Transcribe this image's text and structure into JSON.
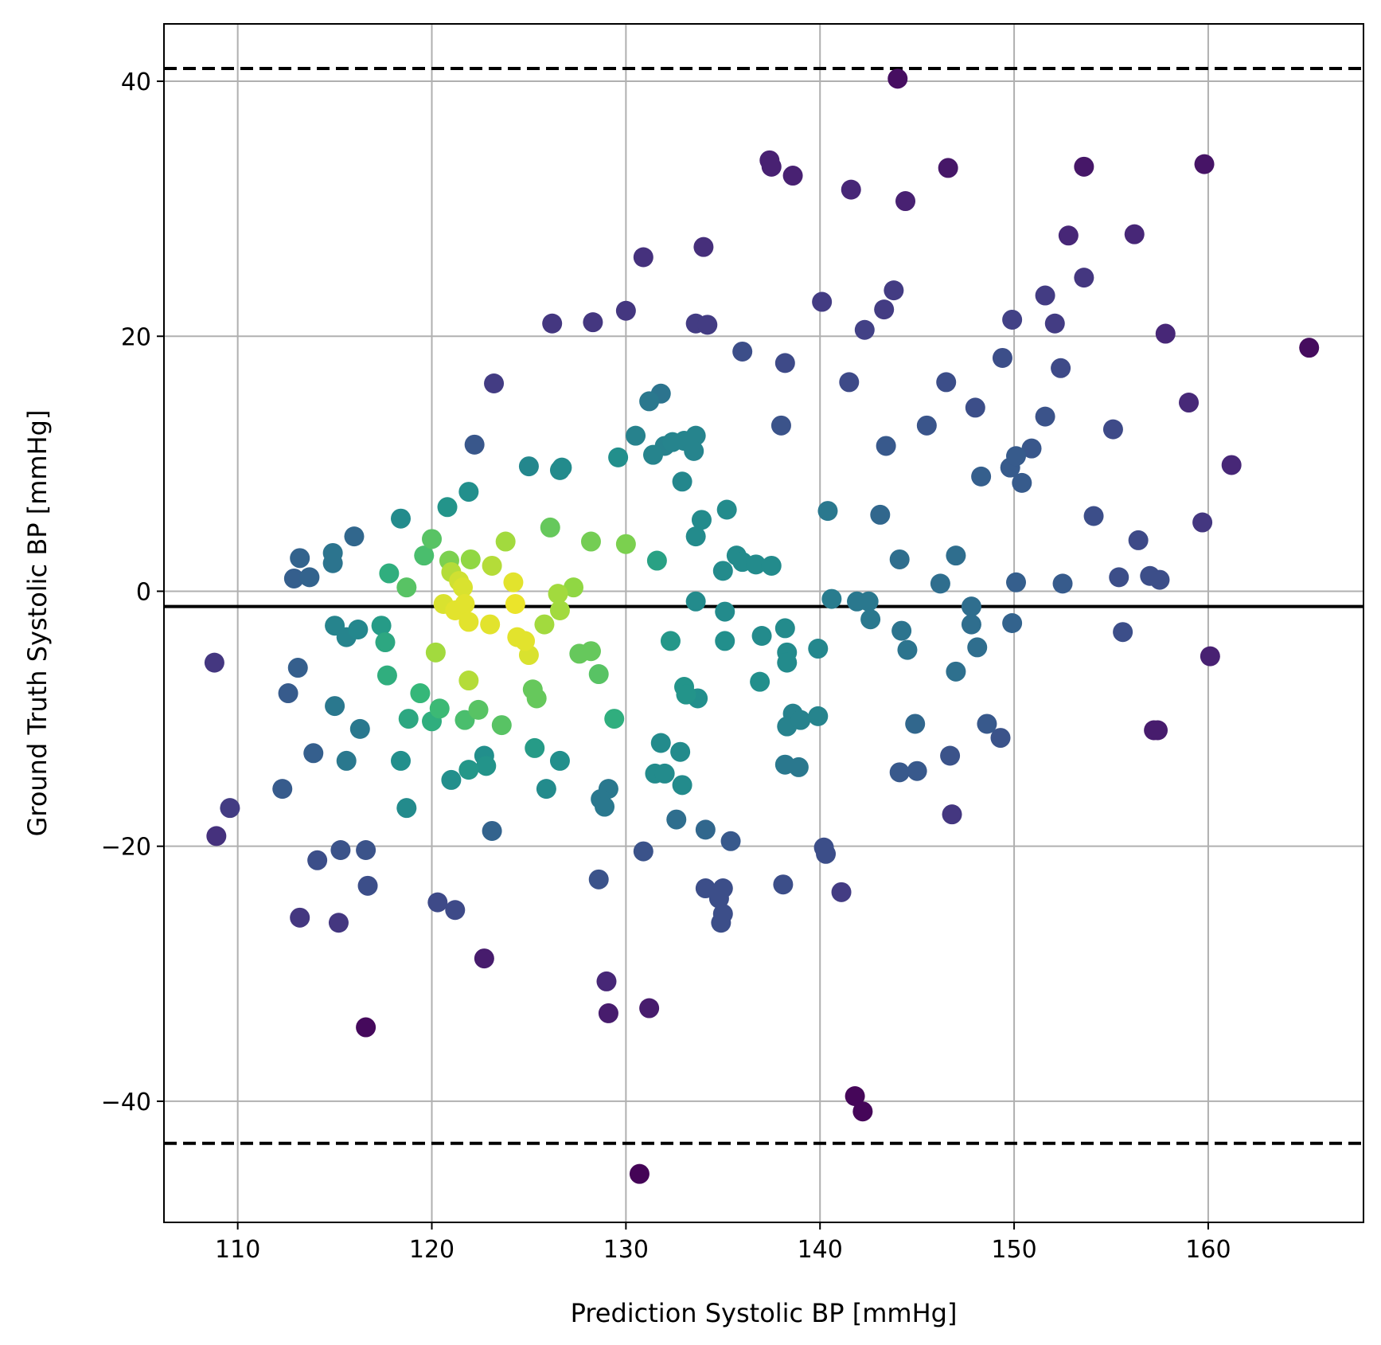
{
  "chart_data": {
    "type": "scatter",
    "title": "",
    "xlabel": "Prediction Systolic BP [mmHg]",
    "ylabel": "Ground Truth Systolic BP [mmHg]",
    "xlim": [
      106.2,
      168.0
    ],
    "ylim": [
      -49.5,
      44.5
    ],
    "xticks": [
      110,
      120,
      130,
      140,
      150,
      160
    ],
    "yticks": [
      -40,
      -20,
      0,
      20,
      40
    ],
    "ytick_labels": [
      "−40",
      "−20",
      "0",
      "20",
      "40"
    ],
    "grid": true,
    "colormap": "viridis",
    "color_note": "point color encodes local point density (yellow = densest, dark purple = sparsest)",
    "reference_lines": [
      {
        "kind": "mean",
        "y": -1.2,
        "style": "solid",
        "color": "#000000"
      },
      {
        "kind": "upper_limit",
        "y": 41.0,
        "style": "dashed",
        "color": "#000000"
      },
      {
        "kind": "lower_limit",
        "y": -43.3,
        "style": "dashed",
        "color": "#000000"
      }
    ],
    "points": [
      [
        144.0,
        40.2,
        0.05
      ],
      [
        137.4,
        33.8,
        0.12
      ],
      [
        137.5,
        33.3,
        0.12
      ],
      [
        138.6,
        32.6,
        0.12
      ],
      [
        146.6,
        33.2,
        0.08
      ],
      [
        141.6,
        31.5,
        0.14
      ],
      [
        144.4,
        30.6,
        0.12
      ],
      [
        153.6,
        33.3,
        0.08
      ],
      [
        159.8,
        33.5,
        0.07
      ],
      [
        130.9,
        26.2,
        0.18
      ],
      [
        134.0,
        27.0,
        0.17
      ],
      [
        152.8,
        27.9,
        0.14
      ],
      [
        156.2,
        28.0,
        0.14
      ],
      [
        126.2,
        21.0,
        0.2
      ],
      [
        128.3,
        21.1,
        0.2
      ],
      [
        130.0,
        22.0,
        0.2
      ],
      [
        133.6,
        21.0,
        0.22
      ],
      [
        134.2,
        20.9,
        0.22
      ],
      [
        140.1,
        22.7,
        0.22
      ],
      [
        142.3,
        20.5,
        0.24
      ],
      [
        143.3,
        22.1,
        0.22
      ],
      [
        143.8,
        23.6,
        0.22
      ],
      [
        149.9,
        21.3,
        0.24
      ],
      [
        151.6,
        23.2,
        0.22
      ],
      [
        152.1,
        21.0,
        0.22
      ],
      [
        153.6,
        24.6,
        0.2
      ],
      [
        157.8,
        20.2,
        0.14
      ],
      [
        165.2,
        19.1,
        0.04
      ],
      [
        136.0,
        18.8,
        0.3
      ],
      [
        138.2,
        17.9,
        0.28
      ],
      [
        141.5,
        16.4,
        0.28
      ],
      [
        146.5,
        16.4,
        0.3
      ],
      [
        148.0,
        14.4,
        0.3
      ],
      [
        152.4,
        17.5,
        0.28
      ],
      [
        159.0,
        14.8,
        0.15
      ],
      [
        123.2,
        16.3,
        0.22
      ],
      [
        131.2,
        14.9,
        0.5
      ],
      [
        131.8,
        15.5,
        0.48
      ],
      [
        138.0,
        13.0,
        0.32
      ],
      [
        145.5,
        13.0,
        0.33
      ],
      [
        151.6,
        13.7,
        0.32
      ],
      [
        155.1,
        12.7,
        0.28
      ],
      [
        122.2,
        11.5,
        0.34
      ],
      [
        130.5,
        12.2,
        0.55
      ],
      [
        132.0,
        11.4,
        0.55
      ],
      [
        132.4,
        11.7,
        0.56
      ],
      [
        133.0,
        11.8,
        0.56
      ],
      [
        133.6,
        12.2,
        0.56
      ],
      [
        133.5,
        11.0,
        0.56
      ],
      [
        131.4,
        10.7,
        0.56
      ],
      [
        143.4,
        11.4,
        0.35
      ],
      [
        149.4,
        18.3,
        0.3
      ],
      [
        149.8,
        9.7,
        0.36
      ],
      [
        150.1,
        10.6,
        0.36
      ],
      [
        150.9,
        11.2,
        0.34
      ],
      [
        150.4,
        8.5,
        0.36
      ],
      [
        148.3,
        9.0,
        0.38
      ],
      [
        161.2,
        9.9,
        0.14
      ],
      [
        125.0,
        9.8,
        0.58
      ],
      [
        126.7,
        9.7,
        0.6
      ],
      [
        126.6,
        9.5,
        0.6
      ],
      [
        129.6,
        10.5,
        0.62
      ],
      [
        132.9,
        8.6,
        0.58
      ],
      [
        121.9,
        7.8,
        0.62
      ],
      [
        120.8,
        6.6,
        0.64
      ],
      [
        118.4,
        5.7,
        0.6
      ],
      [
        116.0,
        4.3,
        0.42
      ],
      [
        133.9,
        5.6,
        0.6
      ],
      [
        135.2,
        6.4,
        0.6
      ],
      [
        140.4,
        6.3,
        0.5
      ],
      [
        143.1,
        6.0,
        0.42
      ],
      [
        154.1,
        5.9,
        0.3
      ],
      [
        159.7,
        5.4,
        0.2
      ],
      [
        126.1,
        5.0,
        0.82
      ],
      [
        128.2,
        3.9,
        0.84
      ],
      [
        130.0,
        3.7,
        0.85
      ],
      [
        123.8,
        3.9,
        0.9
      ],
      [
        120.0,
        4.1,
        0.8
      ],
      [
        133.6,
        4.3,
        0.6
      ],
      [
        156.4,
        4.0,
        0.28
      ],
      [
        113.2,
        2.6,
        0.4
      ],
      [
        114.9,
        3.0,
        0.48
      ],
      [
        114.9,
        2.2,
        0.48
      ],
      [
        112.9,
        1.0,
        0.38
      ],
      [
        113.7,
        1.1,
        0.4
      ],
      [
        117.8,
        1.4,
        0.72
      ],
      [
        119.6,
        2.8,
        0.78
      ],
      [
        120.9,
        2.4,
        0.85
      ],
      [
        122.0,
        2.5,
        0.88
      ],
      [
        123.1,
        2.0,
        0.92
      ],
      [
        124.2,
        0.7,
        0.97
      ],
      [
        121.0,
        1.5,
        0.92
      ],
      [
        121.4,
        0.8,
        0.95
      ],
      [
        118.7,
        0.3,
        0.8
      ],
      [
        131.6,
        2.4,
        0.68
      ],
      [
        135.0,
        1.6,
        0.6
      ],
      [
        135.7,
        2.8,
        0.6
      ],
      [
        136.0,
        2.3,
        0.6
      ],
      [
        136.7,
        2.1,
        0.6
      ],
      [
        137.5,
        2.0,
        0.6
      ],
      [
        144.1,
        2.5,
        0.45
      ],
      [
        147.0,
        2.8,
        0.45
      ],
      [
        146.2,
        0.6,
        0.45
      ],
      [
        150.1,
        0.7,
        0.38
      ],
      [
        152.5,
        0.6,
        0.36
      ],
      [
        155.4,
        1.1,
        0.3
      ],
      [
        157.0,
        1.2,
        0.3
      ],
      [
        157.5,
        0.9,
        0.3
      ],
      [
        126.5,
        -0.2,
        0.9
      ],
      [
        127.3,
        0.3,
        0.88
      ],
      [
        121.6,
        0.3,
        0.96
      ],
      [
        120.6,
        -1.0,
        0.96
      ],
      [
        121.2,
        -1.5,
        0.97
      ],
      [
        121.7,
        -1.0,
        0.97
      ],
      [
        121.9,
        -2.4,
        0.97
      ],
      [
        124.3,
        -1.0,
        0.98
      ],
      [
        123.0,
        -2.6,
        0.97
      ],
      [
        125.8,
        -2.6,
        0.9
      ],
      [
        126.6,
        -1.5,
        0.9
      ],
      [
        124.4,
        -3.6,
        0.97
      ],
      [
        124.8,
        -3.9,
        0.97
      ],
      [
        125.0,
        -5.0,
        0.96
      ],
      [
        120.2,
        -4.8,
        0.9
      ],
      [
        128.2,
        -4.7,
        0.82
      ],
      [
        127.6,
        -4.9,
        0.82
      ],
      [
        128.6,
        -6.5,
        0.8
      ],
      [
        117.4,
        -2.7,
        0.66
      ],
      [
        117.6,
        -4.0,
        0.7
      ],
      [
        116.2,
        -3.0,
        0.58
      ],
      [
        115.0,
        -2.7,
        0.56
      ],
      [
        115.6,
        -3.6,
        0.56
      ],
      [
        133.6,
        -0.8,
        0.6
      ],
      [
        135.1,
        -1.6,
        0.6
      ],
      [
        135.1,
        -3.9,
        0.62
      ],
      [
        137.0,
        -3.5,
        0.6
      ],
      [
        138.2,
        -2.9,
        0.6
      ],
      [
        138.3,
        -4.8,
        0.6
      ],
      [
        138.3,
        -5.6,
        0.6
      ],
      [
        132.3,
        -3.9,
        0.65
      ],
      [
        139.9,
        -4.5,
        0.58
      ],
      [
        140.6,
        -0.6,
        0.52
      ],
      [
        141.9,
        -0.8,
        0.5
      ],
      [
        142.5,
        -0.8,
        0.5
      ],
      [
        142.6,
        -2.2,
        0.5
      ],
      [
        144.2,
        -3.1,
        0.48
      ],
      [
        144.5,
        -4.6,
        0.48
      ],
      [
        147.8,
        -1.2,
        0.45
      ],
      [
        147.8,
        -2.6,
        0.45
      ],
      [
        148.1,
        -4.4,
        0.45
      ],
      [
        149.9,
        -2.5,
        0.4
      ],
      [
        155.6,
        -3.2,
        0.3
      ],
      [
        160.1,
        -5.1,
        0.12
      ],
      [
        108.8,
        -5.6,
        0.2
      ],
      [
        113.1,
        -6.0,
        0.38
      ],
      [
        112.6,
        -8.0,
        0.36
      ],
      [
        117.7,
        -6.6,
        0.72
      ],
      [
        119.4,
        -8.0,
        0.75
      ],
      [
        121.9,
        -7.0,
        0.92
      ],
      [
        125.2,
        -7.7,
        0.82
      ],
      [
        125.4,
        -8.4,
        0.82
      ],
      [
        136.9,
        -7.1,
        0.62
      ],
      [
        133.0,
        -7.5,
        0.64
      ],
      [
        133.1,
        -8.1,
        0.64
      ],
      [
        133.7,
        -8.4,
        0.62
      ],
      [
        147.0,
        -6.3,
        0.46
      ],
      [
        115.0,
        -9.0,
        0.5
      ],
      [
        118.8,
        -10.0,
        0.7
      ],
      [
        120.0,
        -10.2,
        0.72
      ],
      [
        120.4,
        -9.2,
        0.76
      ],
      [
        121.7,
        -10.1,
        0.78
      ],
      [
        122.4,
        -9.3,
        0.8
      ],
      [
        123.6,
        -10.5,
        0.8
      ],
      [
        129.4,
        -10.0,
        0.72
      ],
      [
        138.6,
        -9.6,
        0.55
      ],
      [
        138.3,
        -10.6,
        0.55
      ],
      [
        139.0,
        -10.1,
        0.55
      ],
      [
        139.9,
        -9.8,
        0.56
      ],
      [
        144.9,
        -10.4,
        0.42
      ],
      [
        148.6,
        -10.4,
        0.35
      ],
      [
        149.3,
        -11.5,
        0.32
      ],
      [
        157.2,
        -10.9,
        0.1
      ],
      [
        157.4,
        -10.9,
        0.1
      ],
      [
        116.3,
        -10.8,
        0.5
      ],
      [
        113.9,
        -12.7,
        0.38
      ],
      [
        115.6,
        -13.3,
        0.5
      ],
      [
        118.4,
        -13.3,
        0.62
      ],
      [
        125.3,
        -12.3,
        0.66
      ],
      [
        126.6,
        -13.3,
        0.62
      ],
      [
        122.7,
        -12.9,
        0.62
      ],
      [
        122.8,
        -13.7,
        0.64
      ],
      [
        121.9,
        -14.0,
        0.65
      ],
      [
        121.0,
        -14.8,
        0.62
      ],
      [
        131.8,
        -11.9,
        0.6
      ],
      [
        132.8,
        -12.6,
        0.6
      ],
      [
        131.5,
        -14.3,
        0.6
      ],
      [
        132.0,
        -14.3,
        0.6
      ],
      [
        132.9,
        -15.2,
        0.6
      ],
      [
        125.9,
        -15.5,
        0.6
      ],
      [
        138.2,
        -13.6,
        0.5
      ],
      [
        138.9,
        -13.8,
        0.5
      ],
      [
        144.1,
        -14.2,
        0.35
      ],
      [
        145.0,
        -14.1,
        0.35
      ],
      [
        146.7,
        -12.9,
        0.32
      ],
      [
        112.3,
        -15.5,
        0.36
      ],
      [
        118.7,
        -17.0,
        0.6
      ],
      [
        109.6,
        -17.0,
        0.22
      ],
      [
        129.1,
        -15.5,
        0.5
      ],
      [
        128.7,
        -16.3,
        0.5
      ],
      [
        128.9,
        -16.9,
        0.5
      ],
      [
        132.6,
        -17.9,
        0.45
      ],
      [
        134.1,
        -18.7,
        0.42
      ],
      [
        123.1,
        -18.8,
        0.4
      ],
      [
        108.9,
        -19.2,
        0.18
      ],
      [
        146.8,
        -17.5,
        0.2
      ],
      [
        135.4,
        -19.6,
        0.35
      ],
      [
        115.3,
        -20.3,
        0.32
      ],
      [
        116.6,
        -20.3,
        0.32
      ],
      [
        114.1,
        -21.1,
        0.3
      ],
      [
        130.9,
        -20.4,
        0.32
      ],
      [
        140.2,
        -20.1,
        0.3
      ],
      [
        140.3,
        -20.6,
        0.3
      ],
      [
        128.6,
        -22.6,
        0.32
      ],
      [
        138.1,
        -23.0,
        0.3
      ],
      [
        134.1,
        -23.3,
        0.3
      ],
      [
        135.0,
        -23.3,
        0.3
      ],
      [
        116.7,
        -23.1,
        0.3
      ],
      [
        141.1,
        -23.6,
        0.22
      ],
      [
        120.3,
        -24.4,
        0.28
      ],
      [
        121.2,
        -25.0,
        0.28
      ],
      [
        134.8,
        -24.1,
        0.3
      ],
      [
        135.0,
        -25.3,
        0.3
      ],
      [
        134.9,
        -26.0,
        0.3
      ],
      [
        113.2,
        -25.6,
        0.2
      ],
      [
        115.2,
        -26.0,
        0.2
      ],
      [
        122.7,
        -28.8,
        0.1
      ],
      [
        129.0,
        -30.6,
        0.14
      ],
      [
        129.1,
        -33.1,
        0.1
      ],
      [
        131.2,
        -32.7,
        0.1
      ],
      [
        116.6,
        -34.2,
        0.03
      ],
      [
        141.8,
        -39.6,
        0.02
      ],
      [
        142.2,
        -40.8,
        0.02
      ],
      [
        130.7,
        -45.7,
        0.01
      ]
    ]
  }
}
